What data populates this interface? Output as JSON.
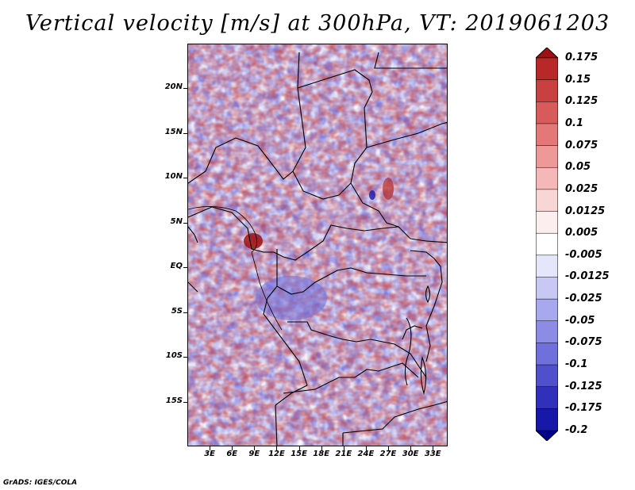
{
  "title": "Vertical velocity [m/s] at 300hPa, VT: 2019061203",
  "credit": "GrADS: IGES/COLA",
  "lat_labels": [
    "20N",
    "15N",
    "10N",
    "5N",
    "EQ",
    "5S",
    "10S",
    "15S"
  ],
  "lat_values": [
    20,
    15,
    10,
    5,
    0,
    -5,
    -10,
    -15
  ],
  "lon_labels": [
    "3E",
    "6E",
    "9E",
    "12E",
    "15E",
    "18E",
    "21E",
    "24E",
    "27E",
    "30E",
    "33E"
  ],
  "lon_values": [
    3,
    6,
    9,
    12,
    15,
    18,
    21,
    24,
    27,
    30,
    33
  ],
  "map_extent": {
    "lon_min": 0,
    "lon_max": 35,
    "lat_min": -20,
    "lat_max": 25
  },
  "colorbar": {
    "labels": [
      "0.175",
      "0.15",
      "0.125",
      "0.1",
      "0.075",
      "0.05",
      "0.025",
      "0.0125",
      "0.005",
      "-0.005",
      "-0.0125",
      "-0.025",
      "-0.05",
      "-0.075",
      "-0.1",
      "-0.125",
      "-0.175",
      "-0.2"
    ],
    "colors": [
      "#a01010",
      "#b82828",
      "#c84040",
      "#d85a5a",
      "#e47878",
      "#ee9898",
      "#f4b8b8",
      "#f8d6d6",
      "#fceeee",
      "#ffffff",
      "#e6e6fa",
      "#c8c8f4",
      "#a8a8ee",
      "#8c8ce6",
      "#7070dc",
      "#5050cc",
      "#3030bb",
      "#1818a8",
      "#000088"
    ]
  }
}
